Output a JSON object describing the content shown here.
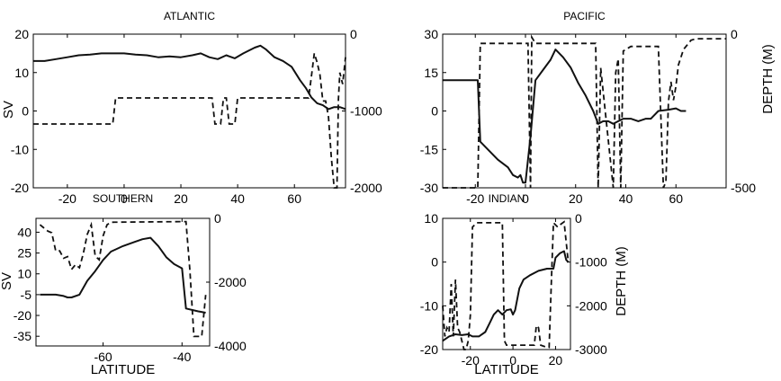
{
  "chart_data": [
    {
      "type": "line",
      "title": "ATLANTIC",
      "xlabel": "",
      "ylabel": "SV",
      "ylabel_right": "",
      "xlim": [
        -32,
        78
      ],
      "ylim": [
        -20,
        20
      ],
      "ylim_right": [
        -2000,
        0
      ],
      "xticks": [
        -20,
        0,
        20,
        40,
        60
      ],
      "yticks": [
        -20,
        -10,
        0,
        10,
        20
      ],
      "yticks_right": [
        -2000,
        -1000,
        0
      ],
      "solid": [
        [
          -32,
          13
        ],
        [
          -28,
          13
        ],
        [
          -24,
          13.5
        ],
        [
          -20,
          14
        ],
        [
          -16,
          14.5
        ],
        [
          -12,
          14.7
        ],
        [
          -8,
          15
        ],
        [
          -4,
          15
        ],
        [
          0,
          15
        ],
        [
          4,
          14.7
        ],
        [
          8,
          14.5
        ],
        [
          12,
          14
        ],
        [
          16,
          14.2
        ],
        [
          20,
          14
        ],
        [
          24,
          14.5
        ],
        [
          27,
          15
        ],
        [
          30,
          14
        ],
        [
          33,
          13.5
        ],
        [
          36,
          14.5
        ],
        [
          39,
          13.7
        ],
        [
          42,
          15
        ],
        [
          46,
          16.5
        ],
        [
          48,
          17
        ],
        [
          50,
          16
        ],
        [
          53,
          14
        ],
        [
          56,
          13
        ],
        [
          59,
          11.5
        ],
        [
          62,
          8
        ],
        [
          64,
          6
        ],
        [
          66,
          3.5
        ],
        [
          68,
          2
        ],
        [
          70,
          1.5
        ],
        [
          72,
          0.5
        ],
        [
          74,
          1
        ],
        [
          76,
          1
        ],
        [
          78,
          0.5
        ]
      ],
      "dashed": [
        [
          -32,
          -1170
        ],
        [
          -4,
          -1170
        ],
        [
          -3,
          -830
        ],
        [
          31,
          -830
        ],
        [
          32,
          -1170
        ],
        [
          34,
          -1170
        ],
        [
          35,
          -830
        ],
        [
          36,
          -830
        ],
        [
          37,
          -1170
        ],
        [
          39,
          -1170
        ],
        [
          40,
          -830
        ],
        [
          65,
          -830
        ],
        [
          66,
          -550
        ],
        [
          67,
          -250
        ],
        [
          68,
          -370
        ],
        [
          69,
          -530
        ],
        [
          70,
          -870
        ],
        [
          71,
          -870
        ],
        [
          72,
          -1080
        ],
        [
          73,
          -1600
        ],
        [
          74,
          -2000
        ],
        [
          75,
          -2000
        ],
        [
          75.5,
          -850
        ],
        [
          76,
          -500
        ],
        [
          77,
          -650
        ],
        [
          78,
          -300
        ]
      ]
    },
    {
      "type": "line",
      "title": "PACIFIC",
      "xlabel": "",
      "ylabel": "",
      "ylabel_right": "DEPTH (M)",
      "xlim": [
        -33,
        80
      ],
      "ylim": [
        -30,
        30
      ],
      "ylim_right": [
        -500,
        0
      ],
      "xticks": [
        -20,
        0,
        20,
        40,
        60
      ],
      "yticks": [
        -30,
        -15,
        0,
        15,
        30
      ],
      "yticks_right": [
        -500,
        0
      ],
      "solid": [
        [
          -33,
          12
        ],
        [
          -19,
          12
        ],
        [
          -18,
          -12
        ],
        [
          -15,
          -15
        ],
        [
          -11,
          -19
        ],
        [
          -7,
          -22
        ],
        [
          -5,
          -25
        ],
        [
          -3,
          -26
        ],
        [
          -2,
          -25
        ],
        [
          -1,
          -28
        ],
        [
          0,
          -28
        ],
        [
          2,
          -10
        ],
        [
          4,
          12
        ],
        [
          7,
          16
        ],
        [
          10,
          20
        ],
        [
          12,
          24
        ],
        [
          15,
          21
        ],
        [
          18,
          17
        ],
        [
          21,
          11
        ],
        [
          24,
          6
        ],
        [
          27,
          0
        ],
        [
          29,
          -5
        ],
        [
          31,
          -4
        ],
        [
          33,
          -4
        ],
        [
          35,
          -5
        ],
        [
          37,
          -4
        ],
        [
          39,
          -3
        ],
        [
          42,
          -3
        ],
        [
          45,
          -4
        ],
        [
          48,
          -3
        ],
        [
          50,
          -3
        ],
        [
          53,
          0
        ],
        [
          57,
          0.5
        ],
        [
          60,
          1
        ],
        [
          62,
          0
        ],
        [
          64,
          0
        ]
      ],
      "dashed": [
        [
          -33,
          -500
        ],
        [
          -19,
          -500
        ],
        [
          -18,
          -30
        ],
        [
          1,
          -30
        ],
        [
          2,
          -500
        ],
        [
          2.5,
          -10
        ],
        [
          4,
          -30
        ],
        [
          28,
          -30
        ],
        [
          29,
          -500
        ],
        [
          30,
          -110
        ],
        [
          35,
          -500
        ],
        [
          36,
          -125
        ],
        [
          37,
          -80
        ],
        [
          38,
          -500
        ],
        [
          39,
          -55
        ],
        [
          42,
          -40
        ],
        [
          53,
          -40
        ],
        [
          55,
          -500
        ],
        [
          56,
          -480
        ],
        [
          57,
          -220
        ],
        [
          58,
          -155
        ],
        [
          59,
          -215
        ],
        [
          60,
          -170
        ],
        [
          61,
          -100
        ],
        [
          62,
          -75
        ],
        [
          63,
          -50
        ],
        [
          66,
          -20
        ],
        [
          68,
          -15
        ],
        [
          80,
          -15
        ]
      ]
    },
    {
      "type": "line",
      "title": "SOUTHERN",
      "xlabel": "LATITUDE",
      "ylabel": "SV",
      "ylabel_right": "",
      "xlim": [
        -77,
        -33
      ],
      "ylim": [
        -42,
        50
      ],
      "ylim_right": [
        -4000,
        0
      ],
      "xticks": [
        -60,
        -40
      ],
      "yticks": [
        -35,
        -20,
        -5,
        10,
        25,
        40
      ],
      "yticks_right": [
        -4000,
        -2000,
        0
      ],
      "solid": [
        [
          -76,
          -5
        ],
        [
          -74,
          -5
        ],
        [
          -72,
          -5
        ],
        [
          -70,
          -6
        ],
        [
          -69,
          -7
        ],
        [
          -68,
          -7
        ],
        [
          -66,
          -5
        ],
        [
          -64,
          5
        ],
        [
          -62,
          12
        ],
        [
          -60,
          20
        ],
        [
          -58,
          26
        ],
        [
          -55,
          30
        ],
        [
          -52,
          33
        ],
        [
          -50,
          35
        ],
        [
          -48,
          36
        ],
        [
          -46,
          30
        ],
        [
          -44,
          22
        ],
        [
          -42,
          17
        ],
        [
          -40,
          14
        ],
        [
          -39,
          -15
        ],
        [
          -36,
          -17
        ],
        [
          -34,
          -18
        ]
      ],
      "dashed": [
        [
          -76,
          -200
        ],
        [
          -74,
          -400
        ],
        [
          -73,
          -450
        ],
        [
          -72,
          -1020
        ],
        [
          -71,
          -1020
        ],
        [
          -70,
          -1250
        ],
        [
          -69,
          -1200
        ],
        [
          -68,
          -1600
        ],
        [
          -67,
          -1450
        ],
        [
          -66,
          -1550
        ],
        [
          -65,
          -1100
        ],
        [
          -64,
          -500
        ],
        [
          -63,
          -200
        ],
        [
          -62,
          -1180
        ],
        [
          -61,
          -1300
        ],
        [
          -60,
          -550
        ],
        [
          -59,
          -200
        ],
        [
          -58,
          -120
        ],
        [
          -39,
          -100
        ],
        [
          -38,
          -1650
        ],
        [
          -37,
          -3700
        ],
        [
          -35,
          -3700
        ],
        [
          -34,
          -2400
        ]
      ]
    },
    {
      "type": "line",
      "title": "INDIAN",
      "xlabel": "LATITUDE",
      "ylabel": "",
      "ylabel_right": "DEPTH (M)",
      "xlim": [
        -33,
        27
      ],
      "ylim": [
        -20,
        10
      ],
      "ylim_right": [
        -3000,
        0
      ],
      "xticks": [
        -20,
        0,
        20
      ],
      "yticks": [
        -20,
        -10,
        0,
        10
      ],
      "yticks_right": [
        -3000,
        -2000,
        -1000,
        0
      ],
      "solid": [
        [
          -33,
          -18
        ],
        [
          -30,
          -17
        ],
        [
          -27,
          -16.5
        ],
        [
          -24,
          -16.7
        ],
        [
          -21,
          -16.5
        ],
        [
          -19,
          -17
        ],
        [
          -16,
          -17
        ],
        [
          -13,
          -16
        ],
        [
          -11,
          -14
        ],
        [
          -9,
          -12
        ],
        [
          -7,
          -11
        ],
        [
          -5,
          -12
        ],
        [
          -3,
          -11
        ],
        [
          -1,
          -10.8
        ],
        [
          0,
          -12
        ],
        [
          1,
          -11
        ],
        [
          3,
          -6
        ],
        [
          5,
          -4
        ],
        [
          8,
          -3
        ],
        [
          12,
          -2
        ],
        [
          16,
          -1.5
        ],
        [
          19,
          -1.5
        ],
        [
          20,
          1
        ],
        [
          22,
          2
        ],
        [
          24,
          2.5
        ],
        [
          25,
          0.5
        ],
        [
          26,
          0
        ]
      ],
      "dashed": [
        [
          -33,
          -2000
        ],
        [
          -32,
          -2700
        ],
        [
          -31,
          -2500
        ],
        [
          -30,
          -2600
        ],
        [
          -29,
          -1500
        ],
        [
          -28,
          -2700
        ],
        [
          -27,
          -1400
        ],
        [
          -26,
          -2500
        ],
        [
          -25,
          -2600
        ],
        [
          -24,
          -2800
        ],
        [
          -23,
          -3000
        ],
        [
          -22,
          -3000
        ],
        [
          -21,
          -2800
        ],
        [
          -20,
          -2200
        ],
        [
          -19,
          -200
        ],
        [
          -18,
          -150
        ],
        [
          -17,
          -100
        ],
        [
          -5,
          -100
        ],
        [
          -4,
          -2800
        ],
        [
          -3,
          -2900
        ],
        [
          9,
          -2900
        ],
        [
          10,
          -2900
        ],
        [
          11,
          -2450
        ],
        [
          12,
          -2500
        ],
        [
          13,
          -2900
        ],
        [
          16,
          -2950
        ],
        [
          17,
          -2950
        ],
        [
          18,
          -1500
        ],
        [
          19,
          -100
        ],
        [
          21,
          -200
        ],
        [
          22,
          -150
        ],
        [
          24,
          -80
        ],
        [
          26,
          -1000
        ]
      ]
    }
  ]
}
